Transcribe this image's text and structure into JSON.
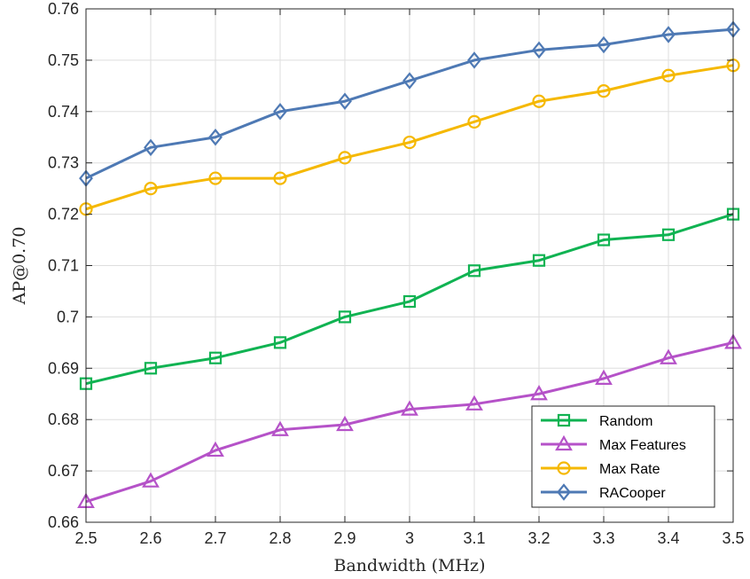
{
  "chart_data": {
    "type": "line",
    "title": "",
    "xlabel": "Bandwidth (MHz)",
    "ylabel": "AP@0.70",
    "x": [
      2.5,
      2.6,
      2.7,
      2.8,
      2.9,
      3.0,
      3.1,
      3.2,
      3.3,
      3.4,
      3.5
    ],
    "xlim": [
      2.5,
      3.5
    ],
    "ylim": [
      0.66,
      0.76
    ],
    "xticks": [
      "2.5",
      "2.6",
      "2.7",
      "2.8",
      "2.9",
      "3",
      "3.1",
      "3.2",
      "3.3",
      "3.4",
      "3.5"
    ],
    "yticks": [
      "0.66",
      "0.67",
      "0.68",
      "0.69",
      "0.7",
      "0.71",
      "0.72",
      "0.73",
      "0.74",
      "0.75",
      "0.76"
    ],
    "grid": true,
    "legend_position": "bottom-right",
    "series": [
      {
        "name": "Random",
        "color": "#10b352",
        "marker": "square",
        "values": [
          0.687,
          0.69,
          0.692,
          0.695,
          0.7,
          0.703,
          0.709,
          0.711,
          0.715,
          0.716,
          0.72
        ]
      },
      {
        "name": "Max Features",
        "color": "#b552c8",
        "marker": "triangle",
        "values": [
          0.664,
          0.668,
          0.674,
          0.678,
          0.679,
          0.682,
          0.683,
          0.685,
          0.688,
          0.692,
          0.695
        ]
      },
      {
        "name": "Max Rate",
        "color": "#f5b800",
        "marker": "circle",
        "values": [
          0.721,
          0.725,
          0.727,
          0.727,
          0.731,
          0.734,
          0.738,
          0.742,
          0.744,
          0.747,
          0.749
        ]
      },
      {
        "name": "RACooper",
        "color": "#4e79b4",
        "marker": "diamond",
        "values": [
          0.727,
          0.733,
          0.735,
          0.74,
          0.742,
          0.746,
          0.75,
          0.752,
          0.753,
          0.755,
          0.756
        ]
      }
    ]
  }
}
